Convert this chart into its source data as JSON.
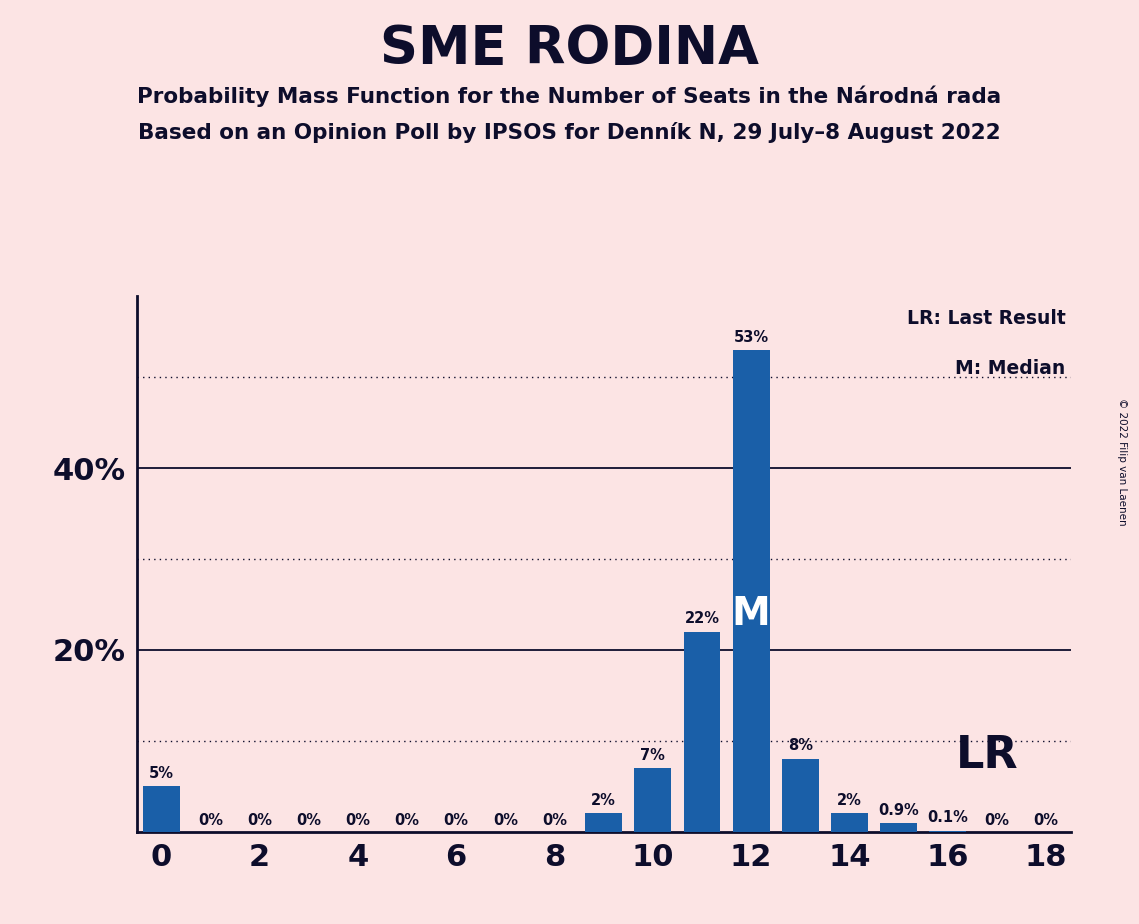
{
  "title": "SME RODINA",
  "subtitle1": "Probability Mass Function for the Number of Seats in the Národná rada",
  "subtitle2": "Based on an Opinion Poll by IPSOS for Denník N, 29 July–8 August 2022",
  "copyright": "© 2022 Filip van Laenen",
  "seats": [
    0,
    1,
    2,
    3,
    4,
    5,
    6,
    7,
    8,
    9,
    10,
    11,
    12,
    13,
    14,
    15,
    16,
    17,
    18
  ],
  "probabilities": [
    5,
    0,
    0,
    0,
    0,
    0,
    0,
    0,
    0,
    2,
    7,
    22,
    53,
    8,
    2,
    0.9,
    0.1,
    0,
    0
  ],
  "labels": [
    "5%",
    "0%",
    "0%",
    "0%",
    "0%",
    "0%",
    "0%",
    "0%",
    "0%",
    "2%",
    "7%",
    "22%",
    "53%",
    "8%",
    "2%",
    "0.9%",
    "0.1%",
    "0%",
    "0%"
  ],
  "bar_color": "#1a5fa8",
  "bg_color": "#fce4e4",
  "text_color": "#0d0d2b",
  "median_seat": 12,
  "lr_seat": 13,
  "solid_gridlines": [
    20,
    40
  ],
  "dotted_gridlines": [
    10,
    30,
    50
  ],
  "ylim": [
    0,
    59
  ],
  "xlim": [
    -0.5,
    18.5
  ],
  "lr_label": "LR",
  "lr_legend": "LR: Last Result",
  "m_legend": "M: Median",
  "bar_width": 0.75,
  "ytick_positions": [
    20,
    40
  ],
  "ytick_labels": [
    "20%",
    "40%"
  ]
}
